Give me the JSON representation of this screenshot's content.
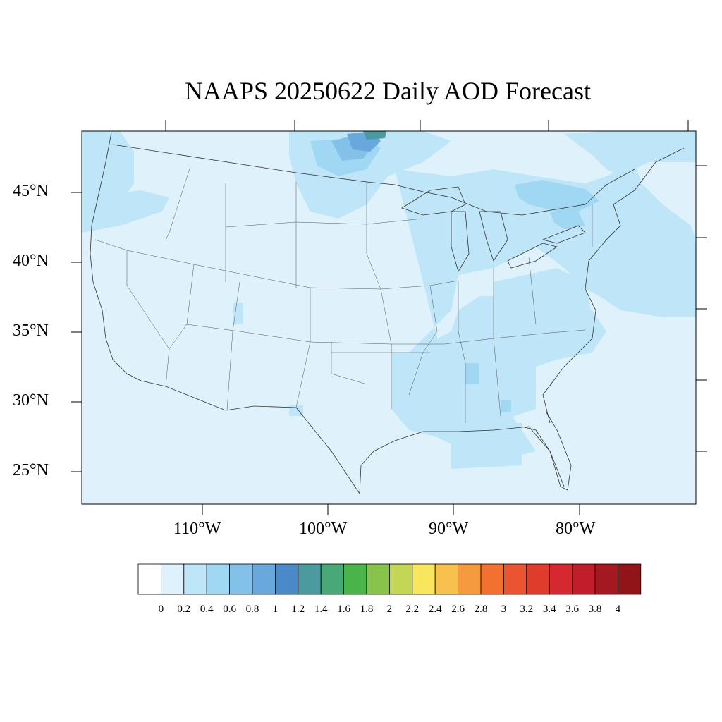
{
  "title": "NAAPS 20250622 Daily AOD Forecast",
  "lat_labels": [
    "45°N",
    "40°N",
    "35°N",
    "30°N",
    "25°N"
  ],
  "lon_labels": [
    "110°W",
    "100°W",
    "90°W",
    "80°W"
  ],
  "colorbar": {
    "levels": [
      "0",
      "0.2",
      "0.4",
      "0.6",
      "0.8",
      "1",
      "1.2",
      "1.4",
      "1.6",
      "1.8",
      "2",
      "2.2",
      "2.4",
      "2.6",
      "2.8",
      "3",
      "3.2",
      "3.4",
      "3.6",
      "3.8",
      "4"
    ],
    "colors": [
      "#ffffff",
      "#dff2fb",
      "#bee6f8",
      "#a0d8f4",
      "#84c1e8",
      "#68a8dc",
      "#4b8ac8",
      "#4a9aa0",
      "#48a878",
      "#48b44a",
      "#88c44c",
      "#c4d656",
      "#f8e65c",
      "#f8c04c",
      "#f69a3e",
      "#f27030",
      "#ea5430",
      "#e03c2c",
      "#d62830",
      "#c01e2a",
      "#a41820",
      "#901418"
    ]
  }
}
